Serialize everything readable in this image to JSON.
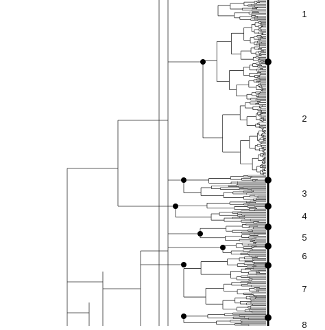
{
  "clusters": [
    {
      "label": "1"
    },
    {
      "label": "2"
    },
    {
      "label": "3"
    },
    {
      "label": "4"
    },
    {
      "label": "5"
    },
    {
      "label": "6"
    },
    {
      "label": "7"
    },
    {
      "label": "8"
    }
  ],
  "colors": {
    "branch": "#2a2a2a",
    "node_marker": "#000000",
    "divider_bar": "#000000",
    "background": "#ffffff"
  }
}
